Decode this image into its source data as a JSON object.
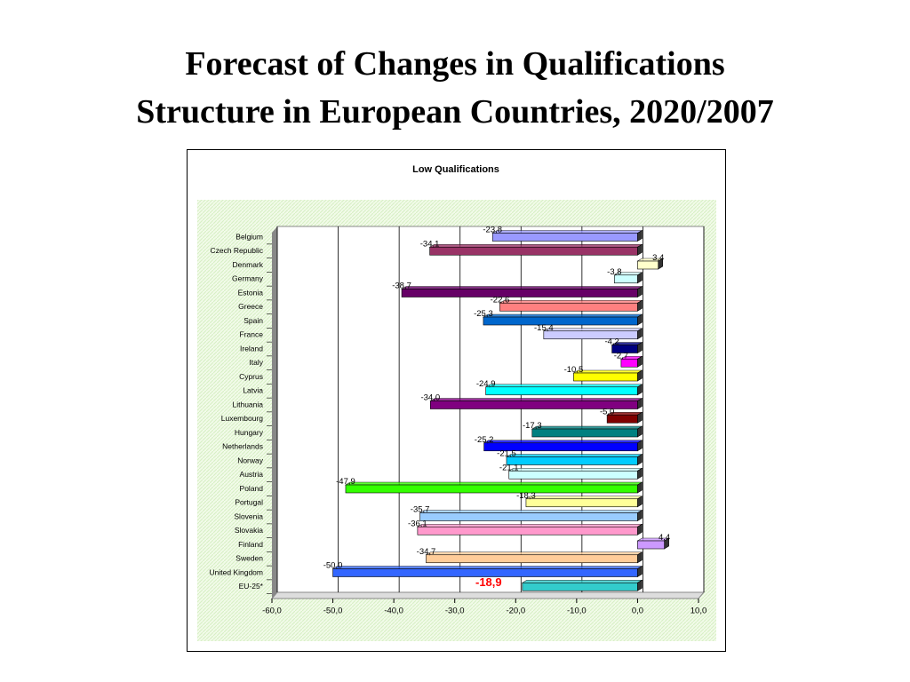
{
  "slide": {
    "title": [
      "Forecast of Changes in Qualifications",
      "Structure in European Countries, 2020/2007"
    ]
  },
  "chart_data": {
    "type": "bar",
    "orientation": "horizontal",
    "title": "Low Qualifications",
    "categories": [
      "Belgium",
      "Czech Republic",
      "Denmark",
      "Germany",
      "Estonia",
      "Greece",
      "Spain",
      "France",
      "Ireland",
      "Italy",
      "Cyprus",
      "Latvia",
      "Lithuania",
      "Luxembourg",
      "Hungary",
      "Netherlands",
      "Norway",
      "Austria",
      "Poland",
      "Portugal",
      "Slovenia",
      "Slovakia",
      "Finland",
      "Sweden",
      "United Kingdom",
      "EU-25*"
    ],
    "values": [
      -23.8,
      -34.1,
      3.4,
      -3.8,
      -38.7,
      -22.6,
      -25.3,
      -15.4,
      -4.2,
      -2.7,
      -10.5,
      -24.9,
      -34.0,
      -5.0,
      -17.3,
      -25.2,
      -21.5,
      -21.1,
      -47.9,
      -18.3,
      -35.7,
      -36.1,
      4.4,
      -34.7,
      -50.0,
      -18.9
    ],
    "value_labels": [
      "-23,8",
      "-34,1",
      "3,4",
      "-3,8",
      "-38,7",
      "-22,6",
      "-25,3",
      "-15,4",
      "-4,2",
      "-2,7",
      "-10,5",
      "-24,9",
      "-34,0",
      "-5,0",
      "-17,3",
      "-25,2",
      "-21,5",
      "-21,1",
      "-47,9",
      "-18,3",
      "-35,7",
      "-36,1",
      "4,4",
      "-34,7",
      "-50,0",
      "-18,9"
    ],
    "colors": [
      "#9999ff",
      "#993366",
      "#ffffcc",
      "#ccffff",
      "#660066",
      "#ff8080",
      "#0066cc",
      "#ccccff",
      "#000080",
      "#ff00ff",
      "#ffff00",
      "#00ffff",
      "#800080",
      "#800000",
      "#008080",
      "#0000ff",
      "#00ccff",
      "#ccffff",
      "#33ff00",
      "#ffff99",
      "#99ccff",
      "#ff99cc",
      "#cc99ff",
      "#ffcc99",
      "#3366ff",
      "#33cccc"
    ],
    "xlim": [
      -60,
      10
    ],
    "xticks": [
      {
        "value": -60,
        "label": "-60,0"
      },
      {
        "value": -50,
        "label": "-50,0"
      },
      {
        "value": -40,
        "label": "-40,0"
      },
      {
        "value": -30,
        "label": "-30,0"
      },
      {
        "value": -20,
        "label": "-20,0"
      },
      {
        "value": -10,
        "label": "-10,0"
      },
      {
        "value": 0,
        "label": "0,0"
      },
      {
        "value": 10,
        "label": "10,0"
      }
    ],
    "grid": true
  }
}
